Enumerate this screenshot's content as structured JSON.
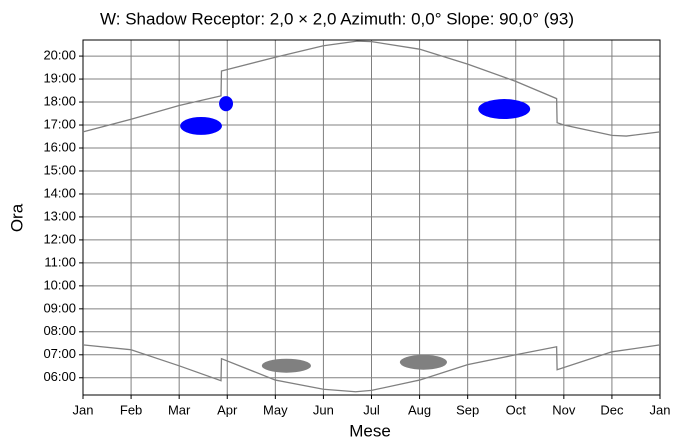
{
  "chart_data": {
    "type": "line",
    "title": "W: Shadow Receptor: 2,0 × 2,0  Azimuth: 0,0°  Slope: 90,0° (93)",
    "x_label": "Mese",
    "y_label": "Ora",
    "grid": true,
    "xlim": [
      0,
      12
    ],
    "xticks": [
      {
        "value": 0,
        "label": "Jan"
      },
      {
        "value": 1,
        "label": "Feb"
      },
      {
        "value": 2,
        "label": "Mar"
      },
      {
        "value": 3,
        "label": "Apr"
      },
      {
        "value": 4,
        "label": "May"
      },
      {
        "value": 5,
        "label": "Jun"
      },
      {
        "value": 6,
        "label": "Jul"
      },
      {
        "value": 7,
        "label": "Aug"
      },
      {
        "value": 8,
        "label": "Sep"
      },
      {
        "value": 9,
        "label": "Oct"
      },
      {
        "value": 10,
        "label": "Nov"
      },
      {
        "value": 11,
        "label": "Dec"
      },
      {
        "value": 12,
        "label": "Jan"
      }
    ],
    "ylim": [
      5.25,
      20.7
    ],
    "yticks": [
      {
        "value": 6,
        "label": "06:00"
      },
      {
        "value": 7,
        "label": "07:00"
      },
      {
        "value": 8,
        "label": "08:00"
      },
      {
        "value": 9,
        "label": "09:00"
      },
      {
        "value": 10,
        "label": "10:00"
      },
      {
        "value": 11,
        "label": "11:00"
      },
      {
        "value": 12,
        "label": "12:00"
      },
      {
        "value": 13,
        "label": "13:00"
      },
      {
        "value": 14,
        "label": "14:00"
      },
      {
        "value": 15,
        "label": "15:00"
      },
      {
        "value": 16,
        "label": "16:00"
      },
      {
        "value": 17,
        "label": "17:00"
      },
      {
        "value": 18,
        "label": "18:00"
      },
      {
        "value": 19,
        "label": "19:00"
      },
      {
        "value": 20,
        "label": "20:00"
      }
    ],
    "series": [
      {
        "color": "#808080",
        "x": [
          0,
          1,
          2,
          2.87,
          2.88,
          4,
          5,
          5.7,
          6,
          7,
          8,
          9,
          9.85,
          9.86,
          10,
          11,
          11.3,
          12
        ],
        "values": [
          16.7,
          17.25,
          17.85,
          18.27,
          19.35,
          19.95,
          20.45,
          20.65,
          20.63,
          20.3,
          19.65,
          18.9,
          18.15,
          17.1,
          17.0,
          16.55,
          16.52,
          16.7
        ]
      },
      {
        "color": "#808080",
        "x": [
          0,
          1,
          2,
          2.87,
          2.88,
          4,
          5,
          5.67,
          6,
          7,
          8,
          9,
          9.85,
          9.86,
          11,
          12
        ],
        "values": [
          7.43,
          7.22,
          6.52,
          5.87,
          6.83,
          5.9,
          5.5,
          5.39,
          5.45,
          5.9,
          6.57,
          7.0,
          7.35,
          6.35,
          7.13,
          7.43
        ]
      }
    ],
    "regions": [
      {
        "color": "#0000ff",
        "x": [
          2.02,
          2.89
        ],
        "y": [
          16.57,
          17.35
        ]
      },
      {
        "color": "#0000ff",
        "x": [
          2.83,
          3.12
        ],
        "y": [
          17.6,
          18.26
        ]
      },
      {
        "color": "#0000ff",
        "x": [
          8.22,
          9.3
        ],
        "y": [
          17.26,
          18.13
        ]
      },
      {
        "color": "#808080",
        "x": [
          3.72,
          4.74
        ],
        "y": [
          6.22,
          6.83
        ]
      },
      {
        "color": "#808080",
        "x": [
          6.59,
          7.57
        ],
        "y": [
          6.35,
          7.0
        ]
      }
    ]
  }
}
